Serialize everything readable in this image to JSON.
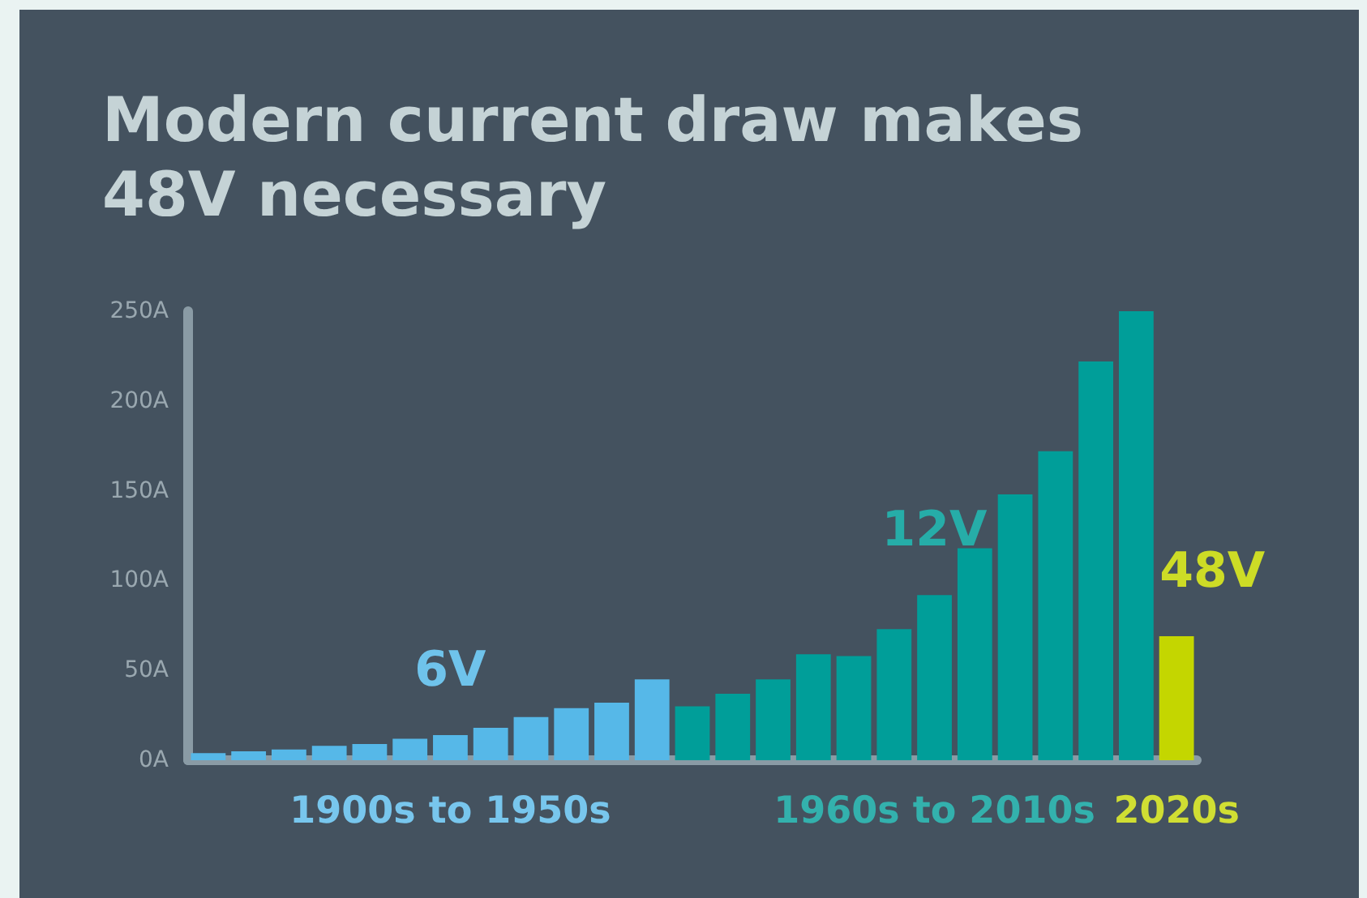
{
  "chart_data": {
    "type": "bar",
    "title": "Modern current draw makes 48V necessary",
    "categories": [
      null,
      null,
      null,
      null,
      null,
      null,
      "1900s to 1950s",
      null,
      null,
      null,
      null,
      null,
      null,
      null,
      null,
      null,
      null,
      null,
      "1960s to 2010s",
      null,
      null,
      null,
      null,
      null,
      "2020s"
    ],
    "stacked": true,
    "series": [
      {
        "name": "6V",
        "color": "#56b8e8",
        "values": [
          4,
          5,
          6,
          8,
          9,
          12,
          14,
          18,
          24,
          29,
          32,
          45,
          null,
          null,
          null,
          null,
          null,
          null,
          null,
          null,
          null,
          null,
          null,
          null,
          null
        ]
      },
      {
        "name": "12V",
        "color": "#009e99",
        "values": [
          null,
          null,
          null,
          null,
          null,
          null,
          null,
          null,
          null,
          null,
          null,
          null,
          30,
          37,
          45,
          59,
          58,
          73,
          92,
          118,
          148,
          172,
          222,
          250,
          null
        ]
      },
      {
        "name": "48V",
        "color": "#c4d600",
        "values": [
          null,
          null,
          null,
          null,
          null,
          null,
          null,
          null,
          null,
          null,
          null,
          null,
          null,
          null,
          null,
          null,
          null,
          null,
          null,
          null,
          null,
          null,
          null,
          null,
          69
        ]
      }
    ],
    "ylim": [
      0,
      250
    ],
    "yticks": [
      {
        "value": 0,
        "label": "0A"
      },
      {
        "value": 50,
        "label": "50A"
      },
      {
        "value": 100,
        "label": "100A"
      },
      {
        "value": 150,
        "label": "150A"
      },
      {
        "value": 200,
        "label": "200A"
      },
      {
        "value": 250,
        "label": "250A"
      }
    ],
    "grid": false,
    "legend": false
  }
}
